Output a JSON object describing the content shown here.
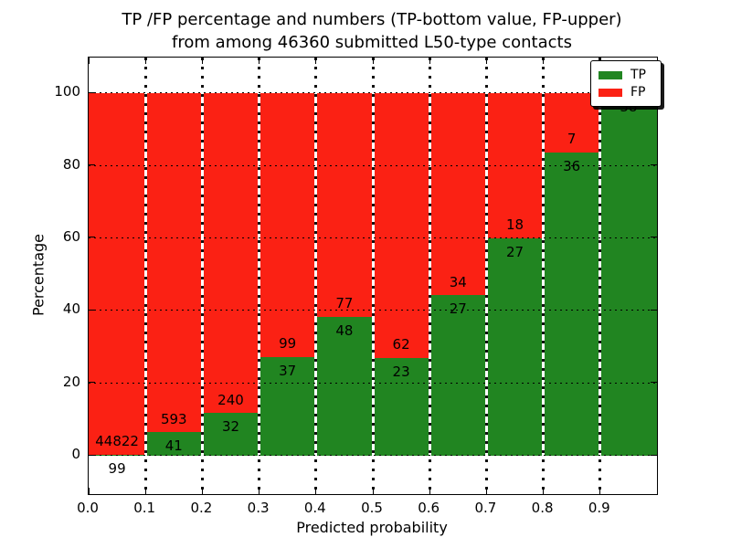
{
  "title": {
    "line1": "TP /FP percentage and numbers (TP-bottom value, FP-upper)",
    "line2": "from among 46360 submitted L50-type contacts"
  },
  "axes": {
    "xlabel": "Predicted probability",
    "ylabel": "Percentage",
    "x_tick_labels": [
      "0.0",
      "0.1",
      "0.2",
      "0.3",
      "0.4",
      "0.5",
      "0.6",
      "0.7",
      "0.8",
      "0.9"
    ],
    "x_tick_values": [
      0,
      0.1,
      0.2,
      0.3,
      0.4,
      0.5,
      0.6,
      0.7,
      0.8,
      0.9
    ],
    "y_tick_labels": [
      "0",
      "20",
      "40",
      "60",
      "80",
      "100"
    ],
    "y_tick_values": [
      0,
      20,
      40,
      60,
      80,
      100
    ]
  },
  "legend": {
    "items": [
      {
        "label": "TP",
        "color": "#218521"
      },
      {
        "label": "FP",
        "color": "#FB2114"
      }
    ]
  },
  "chart_data": {
    "type": "bar",
    "stacked": true,
    "title": "TP /FP percentage and numbers (TP-bottom value, FP-upper) from among 46360 submitted L50-type contacts",
    "xlabel": "Predicted probability",
    "ylabel": "Percentage",
    "total_contacts": 46360,
    "xlim": [
      0,
      1.0
    ],
    "ylim": [
      -10.8,
      109.6
    ],
    "grid": true,
    "legend_position": "upper right",
    "bin_edges": [
      0,
      0.1,
      0.2,
      0.3,
      0.4,
      0.5,
      0.6,
      0.7,
      0.8,
      0.9,
      1.0
    ],
    "categories": [
      "0.0-0.1",
      "0.1-0.2",
      "0.2-0.3",
      "0.3-0.4",
      "0.4-0.5",
      "0.5-0.6",
      "0.6-0.7",
      "0.7-0.8",
      "0.8-0.9",
      "0.9-1.0"
    ],
    "series": [
      {
        "name": "TP",
        "color": "#218521",
        "counts": [
          99,
          41,
          32,
          37,
          48,
          23,
          27,
          27,
          36,
          38
        ],
        "percent": [
          0.22,
          6.47,
          11.76,
          27.21,
          38.4,
          27.06,
          44.26,
          60.0,
          83.72,
          100.0
        ]
      },
      {
        "name": "FP",
        "color": "#FB2114",
        "counts": [
          44822,
          593,
          240,
          99,
          77,
          62,
          34,
          18,
          7,
          0
        ],
        "percent": [
          99.78,
          93.53,
          88.24,
          72.79,
          61.6,
          72.94,
          55.74,
          40.0,
          16.28,
          0.0
        ]
      }
    ]
  }
}
